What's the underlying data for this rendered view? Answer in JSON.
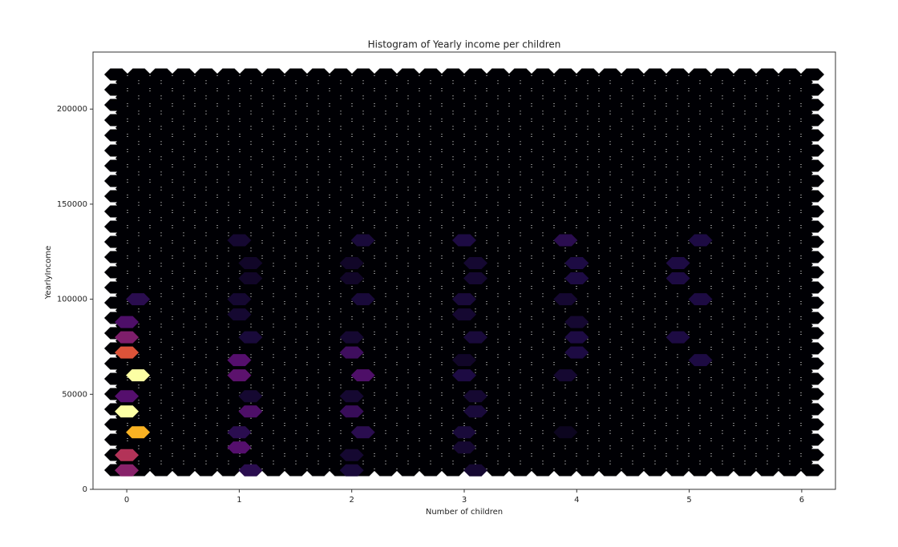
{
  "chart_data": {
    "type": "hexbin",
    "title": "Histogram of Yearly income per children",
    "x_label": "Number of children",
    "y_label": "YearlyIncome",
    "colormap": "inferno",
    "xlim": [
      -0.3,
      6.3
    ],
    "ylim": [
      0,
      230000
    ],
    "xticks": [
      0,
      1,
      2,
      3,
      4,
      5,
      6
    ],
    "yticks": [
      0,
      50000,
      100000,
      150000,
      200000
    ],
    "x": [
      0,
      0,
      0.1,
      0,
      0,
      0.1,
      0,
      0,
      0,
      0.1,
      1,
      1,
      1.1,
      1.1,
      1,
      1,
      1.1,
      1,
      1,
      1.1,
      1.1,
      1,
      1.1,
      2,
      2,
      2.1,
      2,
      2,
      2.1,
      2,
      2,
      2.1,
      2,
      2,
      2.1,
      3.1,
      3,
      3,
      3.1,
      3.1,
      3,
      3,
      3.1,
      3,
      3,
      3.1,
      3.1,
      3,
      3.9,
      4,
      4,
      4,
      3.9,
      4,
      4,
      3.9,
      3.9,
      5.1,
      4.9,
      5.1,
      4.9,
      4.9,
      5.1
    ],
    "y": [
      10000,
      18000,
      30000,
      41000,
      49000,
      60000,
      72000,
      80000,
      88000,
      100000,
      22000,
      30000,
      41000,
      49000,
      60000,
      68000,
      80000,
      92000,
      100000,
      111000,
      119000,
      131000,
      10000,
      10000,
      18000,
      30000,
      41000,
      49000,
      60000,
      72000,
      80000,
      100000,
      111000,
      119000,
      131000,
      10000,
      22000,
      30000,
      41000,
      49000,
      60000,
      68000,
      80000,
      92000,
      100000,
      111000,
      119000,
      131000,
      60000,
      72000,
      80000,
      88000,
      100000,
      111000,
      119000,
      131000,
      30000,
      68000,
      80000,
      100000,
      111000,
      119000,
      131000
    ],
    "counts": [
      45,
      58,
      90,
      100,
      30,
      100,
      70,
      42,
      28,
      18,
      30,
      18,
      28,
      10,
      32,
      30,
      12,
      10,
      10,
      8,
      8,
      10,
      18,
      12,
      10,
      18,
      22,
      10,
      28,
      24,
      10,
      12,
      8,
      8,
      12,
      10,
      10,
      12,
      12,
      10,
      14,
      8,
      12,
      10,
      12,
      10,
      10,
      14,
      10,
      14,
      14,
      10,
      10,
      14,
      14,
      18,
      6,
      14,
      14,
      14,
      14,
      14,
      14
    ]
  }
}
